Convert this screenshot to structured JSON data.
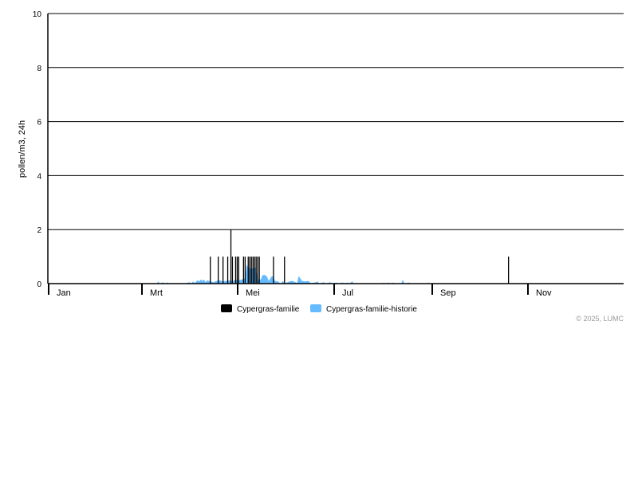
{
  "chart_data": {
    "type": "bar+area",
    "ylabel": "pollen/m3, 24h",
    "ylim": [
      0,
      10
    ],
    "yticks": [
      "0",
      "2",
      "4",
      "6",
      "8",
      "10"
    ],
    "grid": true,
    "xticks": [
      {
        "label": "Jan",
        "date": "01-01"
      },
      {
        "label": "Mrt",
        "date": "03-01"
      },
      {
        "label": "Mei",
        "date": "05-01"
      },
      {
        "label": "Jul",
        "date": "07-01"
      },
      {
        "label": "Sep",
        "date": "09-01"
      },
      {
        "label": "Nov",
        "date": "11-01"
      }
    ],
    "legend_position": "bottom",
    "series": [
      {
        "name": "Cypergras-familie",
        "kind": "bar",
        "color": "#000000",
        "points": [
          [
            "04-14",
            1
          ],
          [
            "04-19",
            1
          ],
          [
            "04-22",
            1
          ],
          [
            "04-25",
            1
          ],
          [
            "04-27",
            2
          ],
          [
            "04-28",
            1
          ],
          [
            "04-30",
            1
          ],
          [
            "05-01",
            1
          ],
          [
            "05-02",
            1
          ],
          [
            "05-05",
            1
          ],
          [
            "05-06",
            1
          ],
          [
            "05-08",
            1
          ],
          [
            "05-09",
            1
          ],
          [
            "05-10",
            1
          ],
          [
            "05-11",
            1
          ],
          [
            "05-12",
            1
          ],
          [
            "05-13",
            1
          ],
          [
            "05-14",
            1
          ],
          [
            "05-15",
            1
          ],
          [
            "05-24",
            1
          ],
          [
            "05-31",
            1
          ],
          [
            "10-20",
            1
          ]
        ]
      },
      {
        "name": "Cypergras-familie-historie",
        "kind": "area",
        "color": "#66bbff",
        "points": [
          [
            "03-11",
            0
          ],
          [
            "03-12",
            0.08
          ],
          [
            "03-13",
            0
          ],
          [
            "03-15",
            0.05
          ],
          [
            "03-16",
            0
          ],
          [
            "03-18",
            0.04
          ],
          [
            "03-19",
            0
          ],
          [
            "03-26",
            0
          ],
          [
            "03-27",
            0.03
          ],
          [
            "03-28",
            0
          ],
          [
            "04-01",
            0.05
          ],
          [
            "04-02",
            0
          ],
          [
            "04-03",
            0.08
          ],
          [
            "04-04",
            0.02
          ],
          [
            "04-06",
            0.12
          ],
          [
            "04-07",
            0.08
          ],
          [
            "04-08",
            0.15
          ],
          [
            "04-09",
            0.1
          ],
          [
            "04-10",
            0.15
          ],
          [
            "04-11",
            0.05
          ],
          [
            "04-12",
            0.12
          ],
          [
            "04-14",
            0.08
          ],
          [
            "04-16",
            0.05
          ],
          [
            "04-18",
            0.1
          ],
          [
            "04-20",
            0.12
          ],
          [
            "04-22",
            0.08
          ],
          [
            "04-24",
            0.1
          ],
          [
            "04-26",
            0.12
          ],
          [
            "04-28",
            0.08
          ],
          [
            "04-30",
            0.15
          ],
          [
            "05-02",
            0.12
          ],
          [
            "05-04",
            0.15
          ],
          [
            "05-06",
            0.2
          ],
          [
            "05-07",
            0.7
          ],
          [
            "05-08",
            0.6
          ],
          [
            "05-10",
            0.55
          ],
          [
            "05-12",
            0.6
          ],
          [
            "05-13",
            0.58
          ],
          [
            "05-14",
            0.15
          ],
          [
            "05-16",
            0.15
          ],
          [
            "05-17",
            0.3
          ],
          [
            "05-18",
            0.33
          ],
          [
            "05-19",
            0.3
          ],
          [
            "05-20",
            0.25
          ],
          [
            "05-21",
            0.1
          ],
          [
            "05-23",
            0.28
          ],
          [
            "05-24",
            0.25
          ],
          [
            "05-25",
            0.1
          ],
          [
            "05-27",
            0.08
          ],
          [
            "05-28",
            0.02
          ],
          [
            "05-29",
            0.03
          ],
          [
            "05-30",
            0.1
          ],
          [
            "05-31",
            0.02
          ],
          [
            "06-02",
            0.05
          ],
          [
            "06-03",
            0.08
          ],
          [
            "06-05",
            0.1
          ],
          [
            "06-07",
            0.05
          ],
          [
            "06-08",
            0.02
          ],
          [
            "06-09",
            0.28
          ],
          [
            "06-10",
            0.2
          ],
          [
            "06-11",
            0.1
          ],
          [
            "06-13",
            0.08
          ],
          [
            "06-15",
            0.1
          ],
          [
            "06-16",
            0.05
          ],
          [
            "06-17",
            0.02
          ],
          [
            "06-20",
            0.05
          ],
          [
            "06-21",
            0.08
          ],
          [
            "06-22",
            0
          ],
          [
            "06-25",
            0.05
          ],
          [
            "06-26",
            0
          ],
          [
            "06-29",
            0.05
          ],
          [
            "06-30",
            0
          ],
          [
            "07-03",
            0.04
          ],
          [
            "07-04",
            0
          ],
          [
            "07-07",
            0.04
          ],
          [
            "07-08",
            0
          ],
          [
            "07-10",
            0.04
          ],
          [
            "07-11",
            0
          ],
          [
            "07-13",
            0.08
          ],
          [
            "07-14",
            0
          ],
          [
            "08-01",
            0
          ],
          [
            "08-02",
            0.04
          ],
          [
            "08-03",
            0
          ],
          [
            "08-05",
            0.04
          ],
          [
            "08-06",
            0
          ],
          [
            "08-08",
            0.04
          ],
          [
            "08-09",
            0
          ],
          [
            "08-13",
            0
          ],
          [
            "08-14",
            0.15
          ],
          [
            "08-15",
            0
          ],
          [
            "08-18",
            0.04
          ],
          [
            "08-19",
            0
          ],
          [
            "08-29",
            0
          ],
          [
            "08-30",
            0.04
          ],
          [
            "08-31",
            0
          ]
        ]
      }
    ]
  },
  "legend": {
    "items": [
      {
        "label": "Cypergras-familie",
        "color": "#000000"
      },
      {
        "label": "Cypergras-familie-historie",
        "color": "#66bbff"
      }
    ]
  },
  "copyright": "© 2025, LUMC"
}
